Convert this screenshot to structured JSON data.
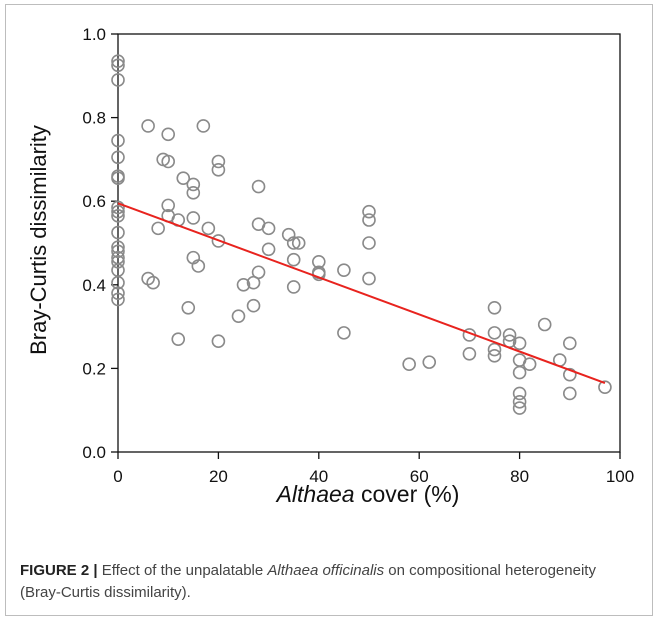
{
  "chart_data": {
    "type": "scatter",
    "xlabel_italic": "Althaea",
    "xlabel_rest": " cover (%)",
    "ylabel": "Bray-Curtis dissimilarity",
    "xlim": [
      0,
      100
    ],
    "ylim": [
      0,
      1.0
    ],
    "x_ticks": [
      "0",
      "20",
      "40",
      "60",
      "80",
      "100"
    ],
    "y_ticks": [
      "0.0",
      "0.2",
      "0.4",
      "0.6",
      "0.8",
      "1.0"
    ],
    "grid": false,
    "marker_color": "#8a8a8a",
    "fit_line_color": "#e8231e",
    "fit_line": {
      "x": [
        0,
        97
      ],
      "y": [
        0.595,
        0.165
      ]
    },
    "points": [
      [
        0,
        0.935
      ],
      [
        0,
        0.925
      ],
      [
        0,
        0.89
      ],
      [
        0,
        0.745
      ],
      [
        0,
        0.705
      ],
      [
        0,
        0.66
      ],
      [
        0,
        0.655
      ],
      [
        0,
        0.585
      ],
      [
        0,
        0.575
      ],
      [
        0,
        0.565
      ],
      [
        0,
        0.525
      ],
      [
        0,
        0.49
      ],
      [
        0,
        0.48
      ],
      [
        0,
        0.465
      ],
      [
        0,
        0.455
      ],
      [
        0,
        0.435
      ],
      [
        0,
        0.405
      ],
      [
        0,
        0.38
      ],
      [
        0,
        0.365
      ],
      [
        6,
        0.78
      ],
      [
        6,
        0.415
      ],
      [
        7,
        0.405
      ],
      [
        8,
        0.535
      ],
      [
        9,
        0.7
      ],
      [
        10,
        0.76
      ],
      [
        10,
        0.695
      ],
      [
        10,
        0.59
      ],
      [
        10,
        0.565
      ],
      [
        12,
        0.555
      ],
      [
        12,
        0.27
      ],
      [
        13,
        0.655
      ],
      [
        14,
        0.345
      ],
      [
        15,
        0.64
      ],
      [
        15,
        0.62
      ],
      [
        15,
        0.56
      ],
      [
        15,
        0.465
      ],
      [
        16,
        0.445
      ],
      [
        17,
        0.78
      ],
      [
        18,
        0.535
      ],
      [
        20,
        0.695
      ],
      [
        20,
        0.675
      ],
      [
        20,
        0.505
      ],
      [
        20,
        0.265
      ],
      [
        24,
        0.325
      ],
      [
        25,
        0.4
      ],
      [
        27,
        0.405
      ],
      [
        27,
        0.35
      ],
      [
        28,
        0.635
      ],
      [
        28,
        0.545
      ],
      [
        28,
        0.43
      ],
      [
        30,
        0.535
      ],
      [
        30,
        0.485
      ],
      [
        34,
        0.52
      ],
      [
        35,
        0.5
      ],
      [
        35,
        0.46
      ],
      [
        35,
        0.395
      ],
      [
        36,
        0.5
      ],
      [
        40,
        0.455
      ],
      [
        40,
        0.43
      ],
      [
        40,
        0.425
      ],
      [
        45,
        0.435
      ],
      [
        45,
        0.285
      ],
      [
        50,
        0.575
      ],
      [
        50,
        0.555
      ],
      [
        50,
        0.5
      ],
      [
        50,
        0.415
      ],
      [
        58,
        0.21
      ],
      [
        62,
        0.215
      ],
      [
        70,
        0.28
      ],
      [
        70,
        0.235
      ],
      [
        75,
        0.345
      ],
      [
        75,
        0.285
      ],
      [
        75,
        0.245
      ],
      [
        75,
        0.23
      ],
      [
        78,
        0.28
      ],
      [
        78,
        0.265
      ],
      [
        80,
        0.26
      ],
      [
        80,
        0.22
      ],
      [
        80,
        0.19
      ],
      [
        80,
        0.14
      ],
      [
        80,
        0.12
      ],
      [
        80,
        0.105
      ],
      [
        82,
        0.21
      ],
      [
        85,
        0.305
      ],
      [
        88,
        0.22
      ],
      [
        90,
        0.26
      ],
      [
        90,
        0.185
      ],
      [
        90,
        0.14
      ],
      [
        97,
        0.155
      ]
    ]
  },
  "caption": {
    "label": "FIGURE 2 |",
    "text_before": " Effect of the unpalatable ",
    "species": "Althaea officinalis",
    "text_after": " on compositional heterogeneity (Bray-Curtis dissimilarity)."
  }
}
